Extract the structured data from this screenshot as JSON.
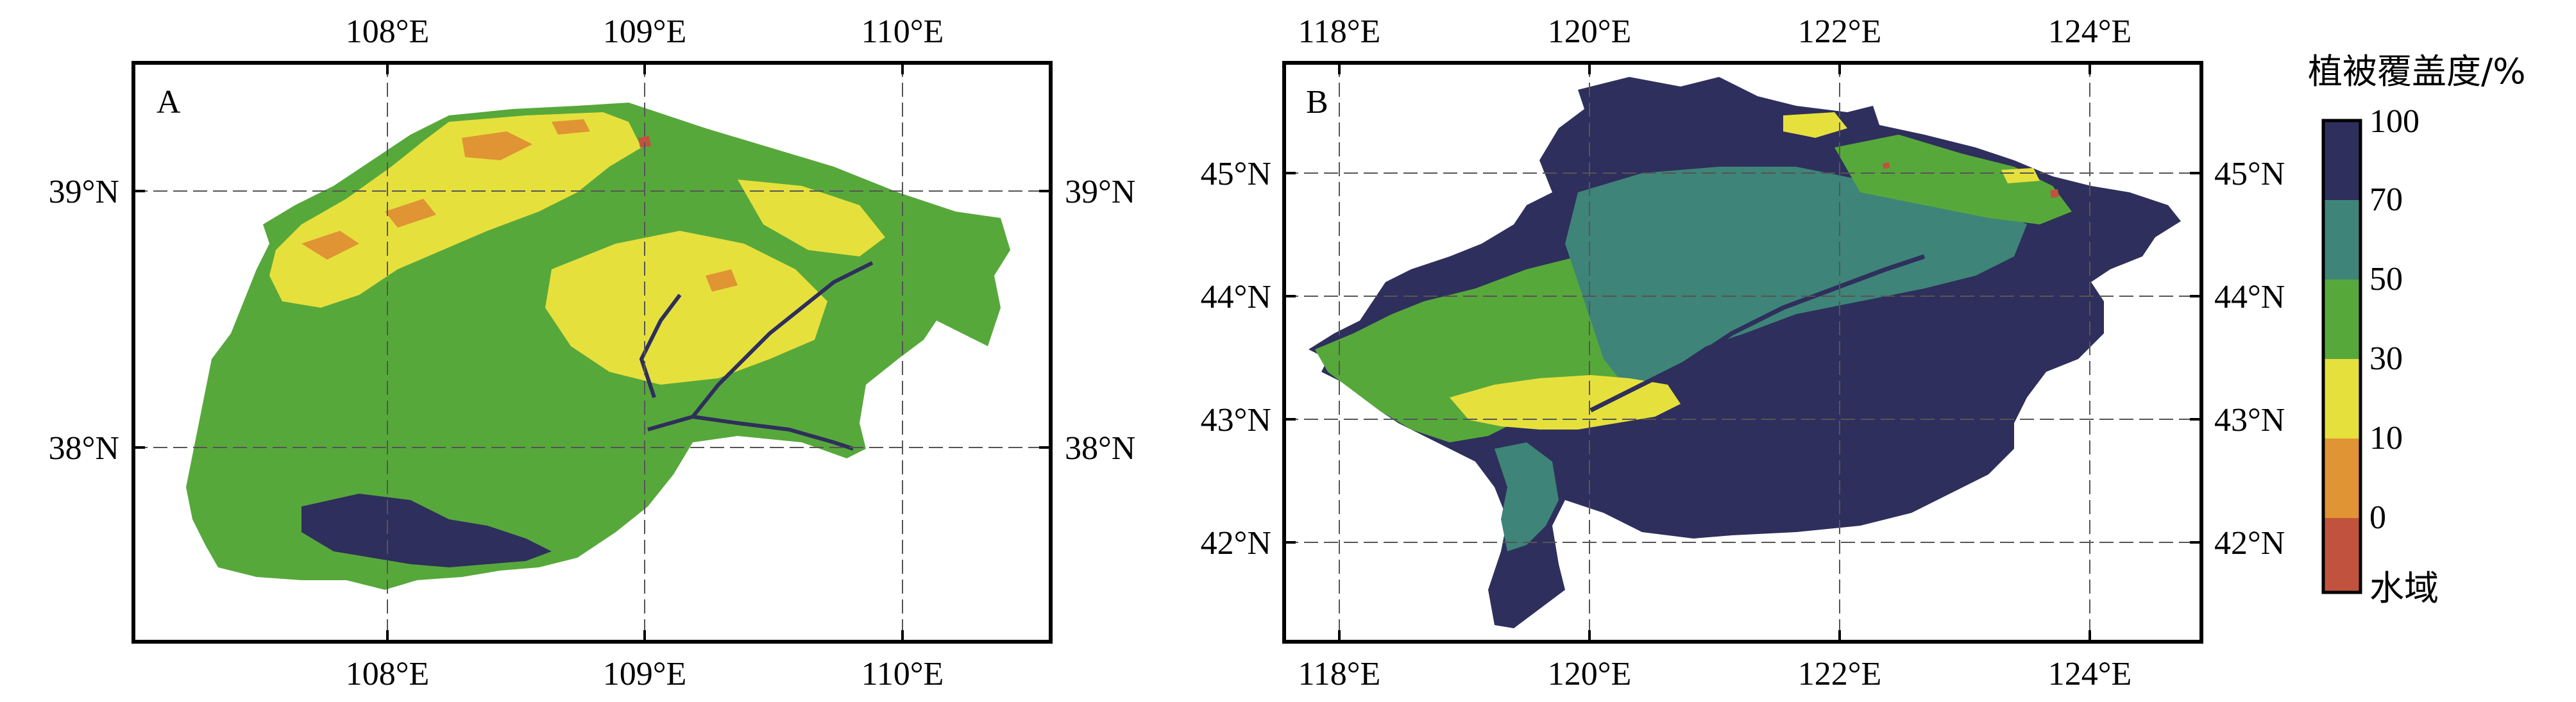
{
  "figure": {
    "panels": [
      {
        "id": "A",
        "label": "A",
        "top_ticks": [
          "108°E",
          "109°E",
          "110°E"
        ],
        "bottom_ticks": [
          "108°E",
          "109°E",
          "110°E"
        ],
        "left_ticks": [
          "39°N",
          "38°N"
        ],
        "right_ticks": [
          "39°N",
          "38°N"
        ]
      },
      {
        "id": "B",
        "label": "B",
        "top_ticks": [
          "118°E",
          "120°E",
          "122°E",
          "124°E"
        ],
        "bottom_ticks": [
          "118°E",
          "120°E",
          "122°E",
          "124°E"
        ],
        "left_ticks": [
          "45°N",
          "44°N",
          "43°N",
          "42°N"
        ],
        "right_ticks": [
          "45°N",
          "44°N",
          "43°N",
          "42°N"
        ]
      }
    ],
    "legend": {
      "title": "植被覆盖度/%",
      "boundaries": [
        "100",
        "70",
        "50",
        "30",
        "10",
        "0"
      ],
      "bottom_label": "水域",
      "classes": [
        {
          "range": "70-100",
          "color": "#2e2f5c"
        },
        {
          "range": "50-70",
          "color": "#3e8478"
        },
        {
          "range": "30-50",
          "color": "#57a83b"
        },
        {
          "range": "10-30",
          "color": "#e6e03d"
        },
        {
          "range": "0-10",
          "color": "#e09433"
        },
        {
          "range": "water",
          "color": "#c1533e"
        }
      ]
    }
  }
}
